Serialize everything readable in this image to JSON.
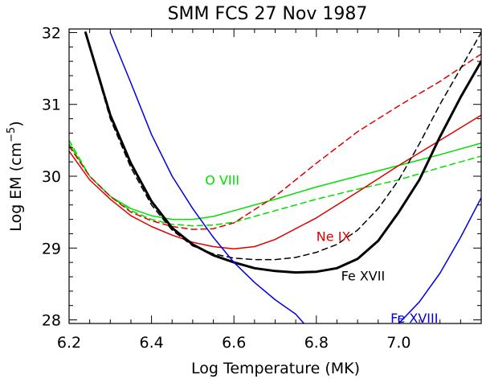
{
  "chart_data": {
    "type": "line",
    "title": "SMM FCS 27 Nov 1987",
    "xlabel": "Log Temperature (MK)",
    "ylabel": {
      "prefix": "Log  EM (cm",
      "sup": "−5",
      "suffix": ")"
    },
    "xlim": [
      6.2,
      7.2
    ],
    "ylim": [
      27.95,
      32.05
    ],
    "xticks": [
      6.2,
      6.4,
      6.6,
      6.8,
      7.0
    ],
    "xtick_labels": [
      "6.2",
      "6.4",
      "6.6",
      "6.8",
      "7.0"
    ],
    "yticks": [
      28,
      29,
      30,
      31,
      32
    ],
    "ytick_labels": [
      "28",
      "29",
      "30",
      "31",
      "32"
    ],
    "series": [
      {
        "name": "O VIII",
        "label": "O VIII",
        "color": "#00e000",
        "dashed": false,
        "width": 1.5,
        "label_pos": [
          6.53,
          29.88
        ],
        "x": [
          6.2,
          6.25,
          6.3,
          6.35,
          6.4,
          6.45,
          6.5,
          6.55,
          6.6,
          6.7,
          6.8,
          6.9,
          7.0,
          7.1,
          7.2
        ],
        "y": [
          30.45,
          30.0,
          29.72,
          29.55,
          29.45,
          29.4,
          29.4,
          29.44,
          29.52,
          29.68,
          29.85,
          30.0,
          30.15,
          30.3,
          30.46
        ]
      },
      {
        "name": "O VIII (dashed)",
        "label": "",
        "color": "#00e000",
        "dashed": true,
        "width": 1.5,
        "x": [
          6.2,
          6.25,
          6.3,
          6.35,
          6.4,
          6.45,
          6.5,
          6.55,
          6.6,
          6.7,
          6.8,
          6.9,
          7.0,
          7.1,
          7.2
        ],
        "y": [
          30.5,
          30.0,
          29.72,
          29.52,
          29.4,
          29.33,
          29.31,
          29.32,
          29.36,
          29.52,
          29.68,
          29.82,
          29.95,
          30.12,
          30.28
        ]
      },
      {
        "name": "Ne IX",
        "label": "Ne IX",
        "color": "#e00000",
        "dashed": false,
        "width": 1.5,
        "label_pos": [
          6.8,
          29.1
        ],
        "x": [
          6.2,
          6.25,
          6.3,
          6.35,
          6.4,
          6.45,
          6.5,
          6.55,
          6.6,
          6.65,
          6.7,
          6.8,
          6.9,
          7.0,
          7.1,
          7.2
        ],
        "y": [
          30.35,
          29.95,
          29.68,
          29.45,
          29.3,
          29.18,
          29.08,
          29.02,
          28.99,
          29.02,
          29.12,
          29.42,
          29.78,
          30.15,
          30.5,
          30.85
        ]
      },
      {
        "name": "Ne IX (dashed)",
        "label": "",
        "color": "#e00000",
        "dashed": true,
        "width": 1.5,
        "x": [
          6.2,
          6.25,
          6.3,
          6.35,
          6.4,
          6.45,
          6.5,
          6.55,
          6.6,
          6.7,
          6.8,
          6.9,
          7.0,
          7.1,
          7.2
        ],
        "y": [
          30.42,
          30.0,
          29.72,
          29.5,
          29.38,
          29.3,
          29.26,
          29.27,
          29.35,
          29.72,
          30.18,
          30.62,
          30.98,
          31.32,
          31.7
        ]
      },
      {
        "name": "Fe XVII",
        "label": "Fe XVII",
        "color": "#000000",
        "dashed": false,
        "width": 3,
        "label_pos": [
          6.86,
          28.55
        ],
        "x": [
          6.24,
          6.3,
          6.35,
          6.4,
          6.45,
          6.5,
          6.55,
          6.6,
          6.65,
          6.7,
          6.75,
          6.8,
          6.85,
          6.9,
          6.95,
          7.0,
          7.05,
          7.1,
          7.15,
          7.2
        ],
        "y": [
          32.0,
          30.85,
          30.18,
          29.65,
          29.28,
          29.05,
          28.9,
          28.8,
          28.72,
          28.68,
          28.66,
          28.67,
          28.72,
          28.85,
          29.1,
          29.5,
          29.95,
          30.55,
          31.1,
          31.6
        ]
      },
      {
        "name": "Fe XVII (dashed)",
        "label": "",
        "color": "#000000",
        "dashed": true,
        "width": 1.5,
        "x": [
          6.24,
          6.3,
          6.35,
          6.4,
          6.45,
          6.5,
          6.55,
          6.6,
          6.65,
          6.7,
          6.75,
          6.8,
          6.85,
          6.9,
          6.95,
          7.0,
          7.05,
          7.1,
          7.15,
          7.2
        ],
        "y": [
          32.0,
          30.8,
          30.12,
          29.6,
          29.25,
          29.03,
          28.92,
          28.86,
          28.84,
          28.84,
          28.87,
          28.94,
          29.05,
          29.25,
          29.55,
          29.95,
          30.45,
          31.0,
          31.5,
          32.0
        ]
      },
      {
        "name": "Fe XVIII",
        "label": "Fe XVIII",
        "color": "#0000e0",
        "dashed": false,
        "width": 1.5,
        "label_pos": [
          6.98,
          27.96
        ],
        "x": [
          6.3,
          6.35,
          6.4,
          6.45,
          6.5,
          6.55,
          6.6,
          6.65,
          6.7,
          6.75,
          6.77
        ],
        "y": [
          32.0,
          31.3,
          30.58,
          30.0,
          29.55,
          29.15,
          28.8,
          28.52,
          28.28,
          28.08,
          27.95
        ]
      },
      {
        "name": "Fe XVIII (right)",
        "label": "",
        "color": "#0000e0",
        "dashed": false,
        "width": 1.5,
        "x": [
          7.0,
          7.05,
          7.1,
          7.15,
          7.2
        ],
        "y": [
          27.95,
          28.25,
          28.65,
          29.15,
          29.7
        ]
      }
    ]
  }
}
